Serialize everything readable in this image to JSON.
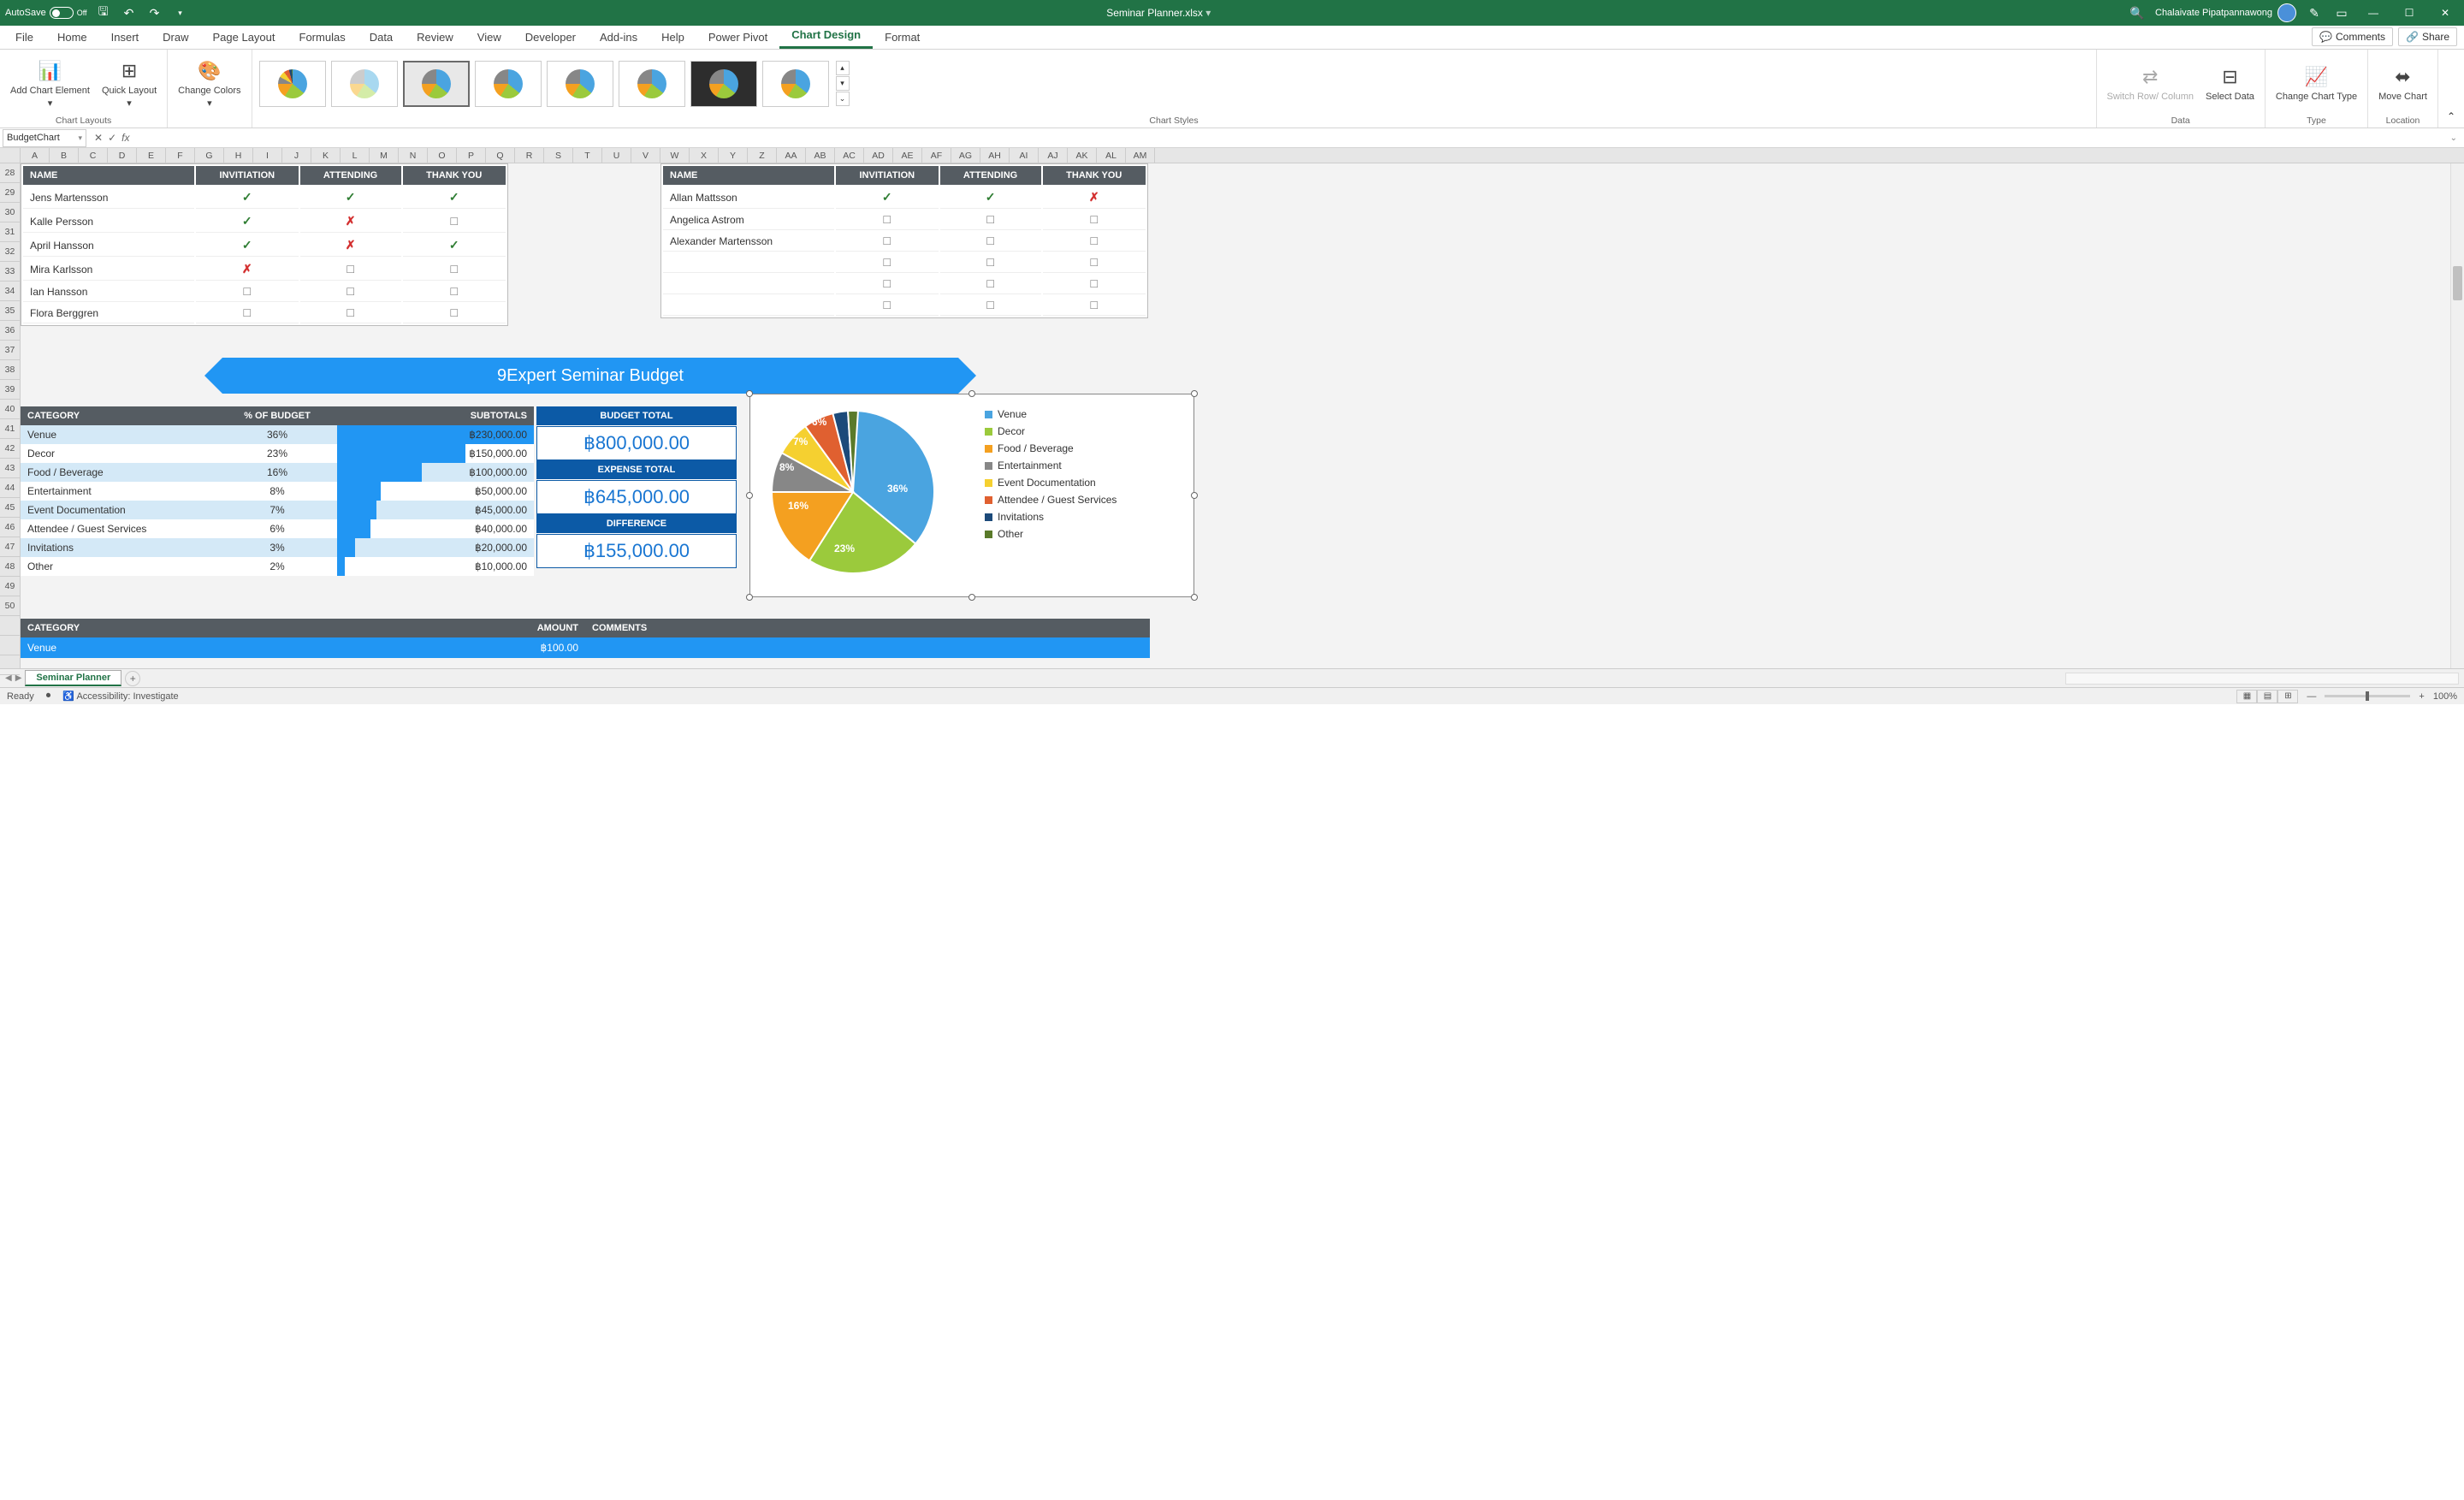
{
  "titlebar": {
    "autosave_label": "AutoSave",
    "autosave_state": "Off",
    "filename": "Seminar Planner.xlsx",
    "user": "Chalaivate Pipatpannawong"
  },
  "ribbon_tabs": [
    "File",
    "Home",
    "Insert",
    "Draw",
    "Page Layout",
    "Formulas",
    "Data",
    "Review",
    "View",
    "Developer",
    "Add-ins",
    "Help",
    "Power Pivot",
    "Chart Design",
    "Format"
  ],
  "ribbon_active": "Chart Design",
  "ribbon_right": {
    "comments": "Comments",
    "share": "Share"
  },
  "ribbon_groups": {
    "chart_layouts": {
      "add_element": "Add Chart\nElement",
      "quick_layout": "Quick\nLayout",
      "label": "Chart Layouts"
    },
    "change_colors": {
      "btn": "Change\nColors"
    },
    "chart_styles": {
      "label": "Chart Styles"
    },
    "data": {
      "switch": "Switch Row/\nColumn",
      "select": "Select\nData",
      "label": "Data"
    },
    "type": {
      "change": "Change\nChart Type",
      "label": "Type"
    },
    "location": {
      "move": "Move\nChart",
      "label": "Location"
    }
  },
  "name_box": "BudgetChart",
  "col_letters": [
    "A",
    "B",
    "C",
    "D",
    "E",
    "F",
    "G",
    "H",
    "I",
    "J",
    "K",
    "L",
    "M",
    "N",
    "O",
    "P",
    "Q",
    "R",
    "S",
    "T",
    "U",
    "V",
    "W",
    "X",
    "Y",
    "Z",
    "AA",
    "AB",
    "AC",
    "AD",
    "AE",
    "AF",
    "AG",
    "AH",
    "AI",
    "AJ",
    "AK",
    "AL",
    "AM"
  ],
  "row_numbers": [
    28,
    29,
    30,
    31,
    32,
    33,
    34,
    35,
    36,
    37,
    38,
    39,
    40,
    41,
    42,
    43,
    44,
    45,
    46,
    47,
    48,
    49,
    50
  ],
  "guests1": {
    "headers": [
      "NAME",
      "INVITIATION",
      "ATTENDING",
      "THANK YOU"
    ],
    "rows": [
      {
        "name": "Jens Martensson",
        "inv": "check",
        "att": "check",
        "ty": "check"
      },
      {
        "name": "Kalle Persson",
        "inv": "check",
        "att": "cross",
        "ty": "box"
      },
      {
        "name": "April Hansson",
        "inv": "check",
        "att": "cross",
        "ty": "check"
      },
      {
        "name": "Mira Karlsson",
        "inv": "cross",
        "att": "box",
        "ty": "box"
      },
      {
        "name": "Ian Hansson",
        "inv": "box",
        "att": "box",
        "ty": "box"
      },
      {
        "name": "Flora Berggren",
        "inv": "box",
        "att": "box",
        "ty": "box"
      }
    ]
  },
  "guests2": {
    "headers": [
      "NAME",
      "INVITIATION",
      "ATTENDING",
      "THANK YOU"
    ],
    "rows": [
      {
        "name": "Allan Mattsson",
        "inv": "check",
        "att": "check",
        "ty": "cross"
      },
      {
        "name": "Angelica Astrom",
        "inv": "box",
        "att": "box",
        "ty": "box"
      },
      {
        "name": "Alexander Martensson",
        "inv": "box",
        "att": "box",
        "ty": "box"
      },
      {
        "name": "",
        "inv": "box",
        "att": "box",
        "ty": "box"
      },
      {
        "name": "",
        "inv": "box",
        "att": "box",
        "ty": "box"
      },
      {
        "name": "",
        "inv": "box",
        "att": "box",
        "ty": "box"
      }
    ]
  },
  "banner": "9Expert Seminar Budget",
  "budget": {
    "headers": [
      "CATEGORY",
      "% OF BUDGET",
      "SUBTOTALS"
    ],
    "rows": [
      {
        "cat": "Venue",
        "pct": "36%",
        "sub": "฿230,000.00",
        "bar": 100
      },
      {
        "cat": "Decor",
        "pct": "23%",
        "sub": "฿150,000.00",
        "bar": 65
      },
      {
        "cat": "Food / Beverage",
        "pct": "16%",
        "sub": "฿100,000.00",
        "bar": 43
      },
      {
        "cat": "Entertainment",
        "pct": "8%",
        "sub": "฿50,000.00",
        "bar": 22
      },
      {
        "cat": "Event Documentation",
        "pct": "7%",
        "sub": "฿45,000.00",
        "bar": 20
      },
      {
        "cat": "Attendee / Guest Services",
        "pct": "6%",
        "sub": "฿40,000.00",
        "bar": 17
      },
      {
        "cat": "Invitations",
        "pct": "3%",
        "sub": "฿20,000.00",
        "bar": 9
      },
      {
        "cat": "Other",
        "pct": "2%",
        "sub": "฿10,000.00",
        "bar": 4
      }
    ]
  },
  "totals": {
    "budget_label": "BUDGET TOTAL",
    "budget_val": "฿800,000.00",
    "expense_label": "EXPENSE TOTAL",
    "expense_val": "฿645,000.00",
    "diff_label": "DIFFERENCE",
    "diff_val": "฿155,000.00"
  },
  "pie": {
    "slices": [
      {
        "label": "Venue",
        "pct": 36,
        "color": "#4aa4e0"
      },
      {
        "label": "Decor",
        "pct": 23,
        "color": "#9bca3c"
      },
      {
        "label": "Food / Beverage",
        "pct": 16,
        "color": "#f4a020"
      },
      {
        "label": "Entertainment",
        "pct": 8,
        "color": "#878787"
      },
      {
        "label": "Event Documentation",
        "pct": 7,
        "color": "#f5d030"
      },
      {
        "label": "Attendee / Guest Services",
        "pct": 6,
        "color": "#e06030"
      },
      {
        "label": "Invitations",
        "pct": 3,
        "color": "#1c4a7a"
      },
      {
        "label": "Other",
        "pct": 2,
        "color": "#5a7a2a"
      }
    ],
    "labels": [
      "36%",
      "23%",
      "16%",
      "8%",
      "7%",
      "6%"
    ]
  },
  "cat_table": {
    "headers": [
      "CATEGORY",
      "AMOUNT",
      "COMMENTS"
    ],
    "rows": [
      {
        "cat": "Venue",
        "amt": "฿100.00",
        "comm": ""
      }
    ]
  },
  "sheet_tab": "Seminar Planner",
  "status": {
    "ready": "Ready",
    "access": "Accessibility: Investigate",
    "zoom": "100%"
  }
}
